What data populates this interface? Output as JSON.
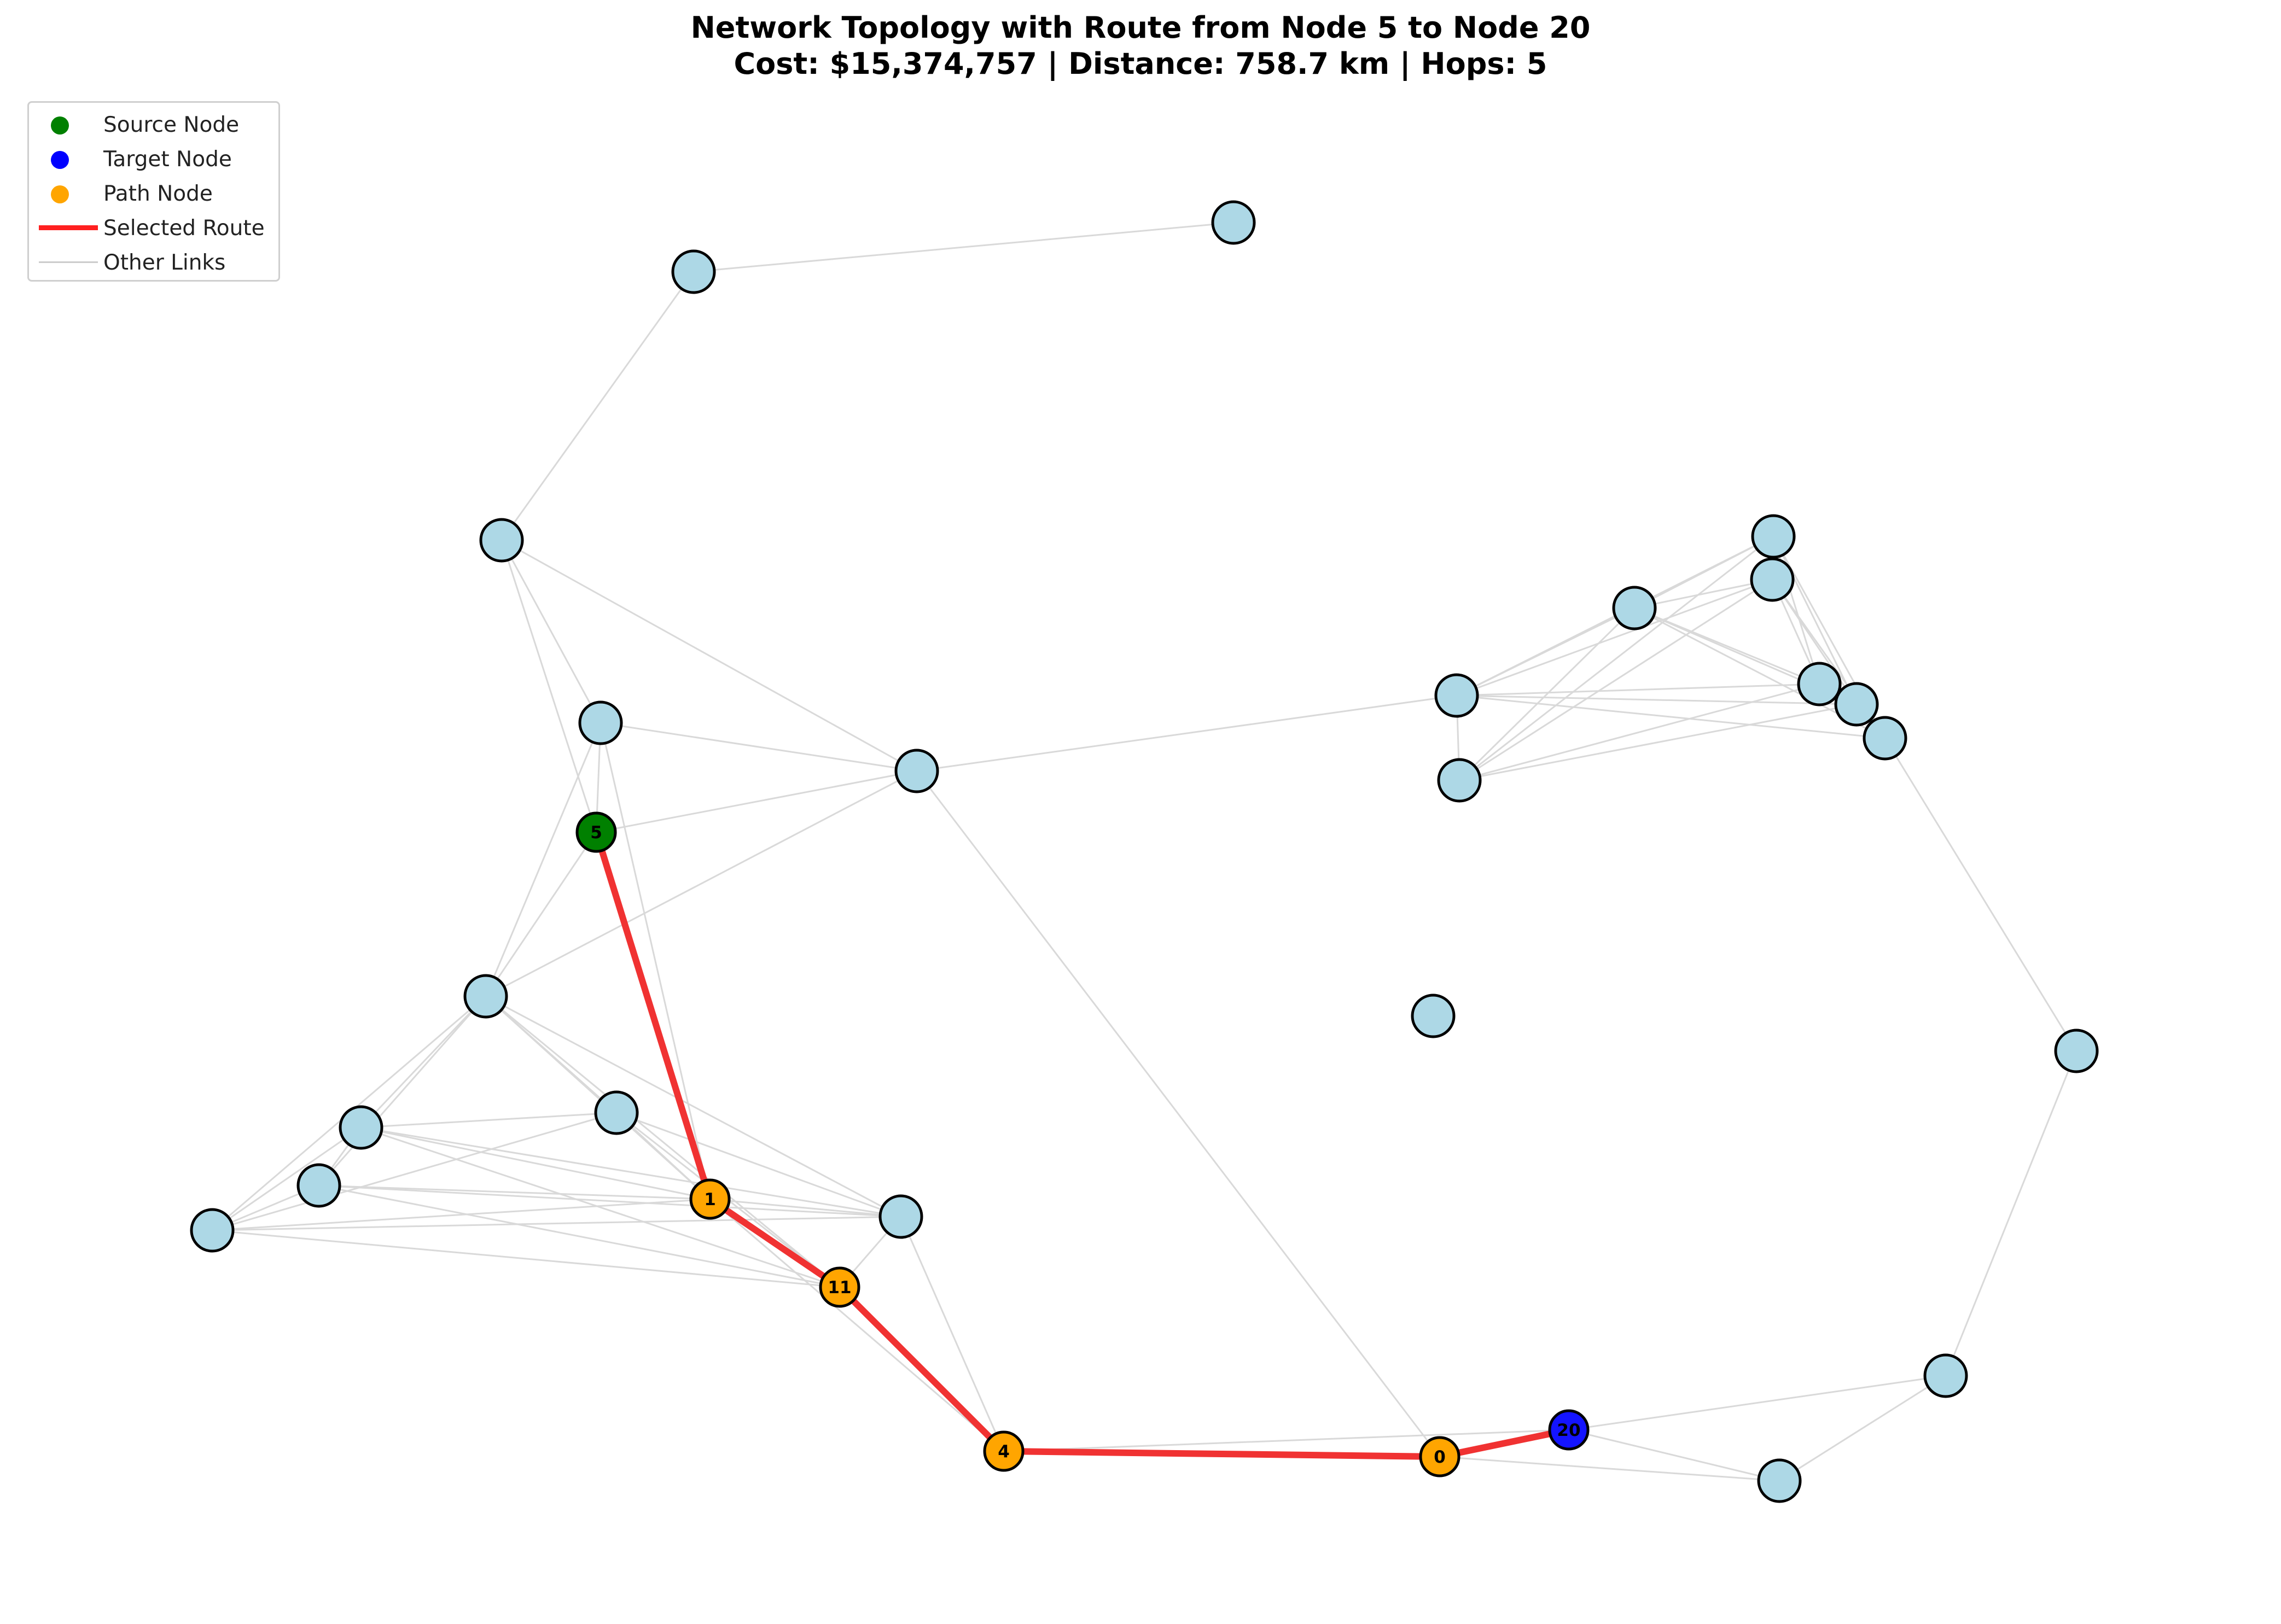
{
  "title": {
    "line1": "Network Topology with Route from Node 5 to Node 20",
    "line2": "Cost: $15,374,757 | Distance: 758.7 km | Hops: 5"
  },
  "legend": {
    "items": [
      {
        "label": "Source Node",
        "kind": "dot",
        "color": "#008000"
      },
      {
        "label": "Target Node",
        "kind": "dot",
        "color": "#0000ff"
      },
      {
        "label": "Path Node",
        "kind": "dot",
        "color": "#ffa500"
      },
      {
        "label": "Selected Route",
        "kind": "line",
        "color": "#ff2020"
      },
      {
        "label": "Other Links",
        "kind": "thin-line",
        "color": "#cccccc"
      }
    ]
  },
  "colors": {
    "node_default": "#add8e6",
    "node_outline": "#000000",
    "source": "#008000",
    "target": "#1414ff",
    "path": "#ffa500",
    "route": "#f03232",
    "link": "#d9d9d9"
  },
  "nodes": [
    {
      "id": "5",
      "label": "5",
      "role": "source"
    },
    {
      "id": "1",
      "label": "1",
      "role": "path"
    },
    {
      "id": "11",
      "label": "11",
      "role": "path"
    },
    {
      "id": "4",
      "label": "4",
      "role": "path"
    },
    {
      "id": "0",
      "label": "0",
      "role": "path"
    },
    {
      "id": "20",
      "label": "20",
      "role": "target"
    },
    {
      "id": "a",
      "label": "",
      "role": "other"
    },
    {
      "id": "b",
      "label": "",
      "role": "other"
    },
    {
      "id": "c",
      "label": "",
      "role": "other"
    },
    {
      "id": "d",
      "label": "",
      "role": "other"
    },
    {
      "id": "e",
      "label": "",
      "role": "other"
    },
    {
      "id": "f",
      "label": "",
      "role": "other"
    },
    {
      "id": "g",
      "label": "",
      "role": "other"
    },
    {
      "id": "h",
      "label": "",
      "role": "other"
    },
    {
      "id": "i",
      "label": "",
      "role": "other"
    },
    {
      "id": "j",
      "label": "",
      "role": "other"
    },
    {
      "id": "k",
      "label": "",
      "role": "other"
    },
    {
      "id": "l",
      "label": "",
      "role": "other"
    },
    {
      "id": "m",
      "label": "",
      "role": "other"
    },
    {
      "id": "n",
      "label": "",
      "role": "other"
    },
    {
      "id": "o",
      "label": "",
      "role": "other"
    },
    {
      "id": "p",
      "label": "",
      "role": "other"
    },
    {
      "id": "q",
      "label": "",
      "role": "other"
    },
    {
      "id": "r",
      "label": "",
      "role": "other"
    },
    {
      "id": "s",
      "label": "",
      "role": "other"
    },
    {
      "id": "t",
      "label": "",
      "role": "other"
    },
    {
      "id": "u",
      "label": "",
      "role": "other"
    },
    {
      "id": "v",
      "label": "",
      "role": "other"
    },
    {
      "id": "w",
      "label": "",
      "role": "other"
    }
  ],
  "route": [
    "5",
    "1",
    "11",
    "4",
    "0",
    "20"
  ],
  "links": [
    [
      "a",
      "b"
    ],
    [
      "b",
      "c"
    ],
    [
      "c",
      "d"
    ],
    [
      "c",
      "e"
    ],
    [
      "c",
      "5"
    ],
    [
      "d",
      "e"
    ],
    [
      "d",
      "5"
    ],
    [
      "d",
      "f"
    ],
    [
      "d",
      "1"
    ],
    [
      "e",
      "5"
    ],
    [
      "e",
      "0"
    ],
    [
      "e",
      "f"
    ],
    [
      "e",
      "q"
    ],
    [
      "5",
      "f"
    ],
    [
      "5",
      "1"
    ],
    [
      "f",
      "g"
    ],
    [
      "f",
      "h"
    ],
    [
      "f",
      "i"
    ],
    [
      "f",
      "j"
    ],
    [
      "f",
      "1"
    ],
    [
      "f",
      "11"
    ],
    [
      "f",
      "k"
    ],
    [
      "g",
      "h"
    ],
    [
      "g",
      "i"
    ],
    [
      "g",
      "j"
    ],
    [
      "g",
      "1"
    ],
    [
      "g",
      "11"
    ],
    [
      "g",
      "k"
    ],
    [
      "h",
      "1"
    ],
    [
      "h",
      "11"
    ],
    [
      "h",
      "k"
    ],
    [
      "h",
      "j"
    ],
    [
      "i",
      "1"
    ],
    [
      "i",
      "11"
    ],
    [
      "i",
      "j"
    ],
    [
      "i",
      "k"
    ],
    [
      "1",
      "k"
    ],
    [
      "1",
      "11"
    ],
    [
      "1",
      "j"
    ],
    [
      "1",
      "4"
    ],
    [
      "11",
      "j"
    ],
    [
      "11",
      "4"
    ],
    [
      "11",
      "k"
    ],
    [
      "k",
      "4"
    ],
    [
      "k",
      "j"
    ],
    [
      "4",
      "0"
    ],
    [
      "4",
      "20"
    ],
    [
      "0",
      "20"
    ],
    [
      "0",
      "t"
    ],
    [
      "20",
      "t"
    ],
    [
      "20",
      "u"
    ],
    [
      "t",
      "u"
    ],
    [
      "u",
      "v"
    ],
    [
      "v",
      "p"
    ],
    [
      "q",
      "r"
    ],
    [
      "q",
      "l"
    ],
    [
      "q",
      "m"
    ],
    [
      "q",
      "n"
    ],
    [
      "q",
      "o"
    ],
    [
      "q",
      "p"
    ],
    [
      "q",
      "s"
    ],
    [
      "r",
      "l"
    ],
    [
      "r",
      "m"
    ],
    [
      "r",
      "n"
    ],
    [
      "r",
      "o"
    ],
    [
      "r",
      "p"
    ],
    [
      "r",
      "s"
    ],
    [
      "s",
      "m"
    ],
    [
      "s",
      "l"
    ],
    [
      "s",
      "n"
    ],
    [
      "s",
      "o"
    ],
    [
      "l",
      "n"
    ],
    [
      "l",
      "o"
    ],
    [
      "l",
      "p"
    ],
    [
      "m",
      "n"
    ],
    [
      "m",
      "o"
    ],
    [
      "m",
      "p"
    ],
    [
      "n",
      "o"
    ],
    [
      "o",
      "p"
    ]
  ]
}
